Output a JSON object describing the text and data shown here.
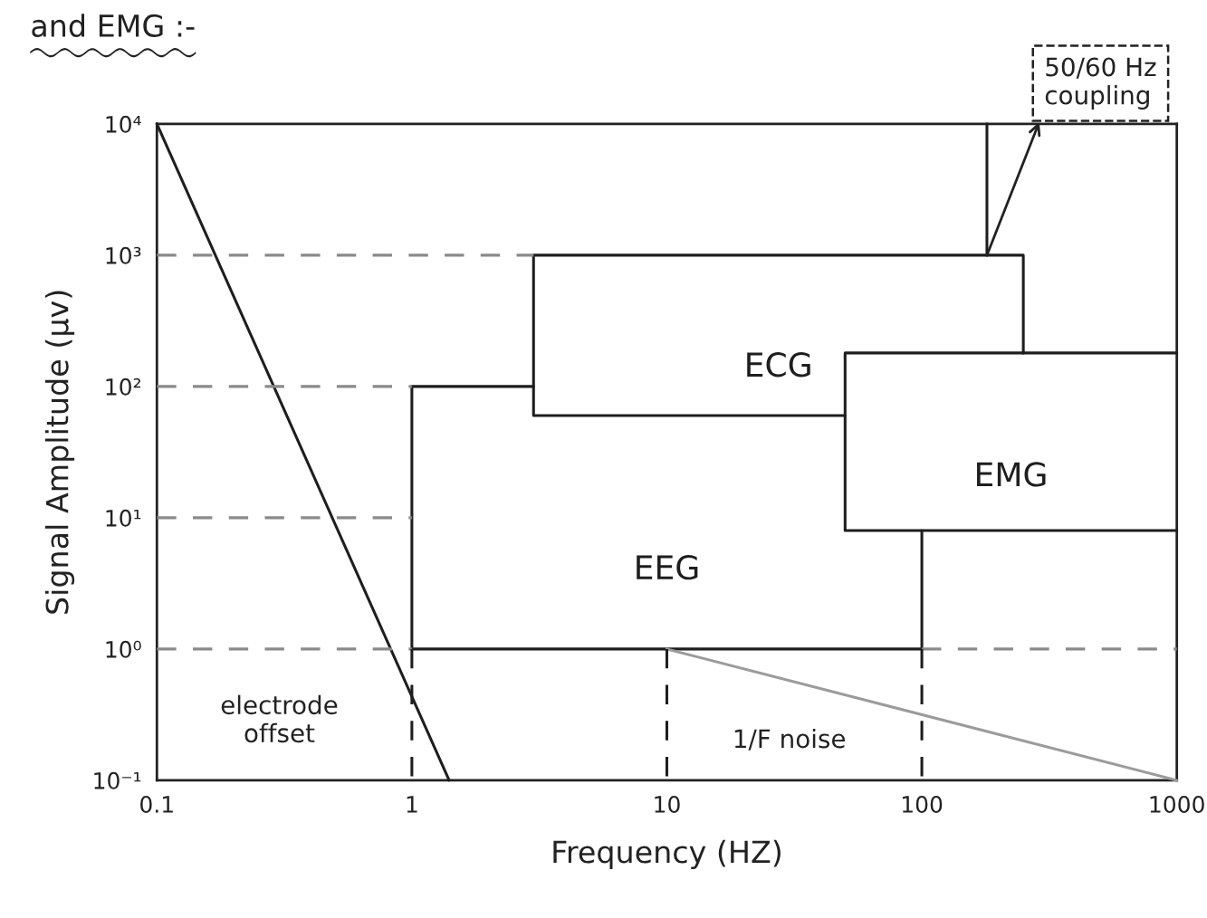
{
  "chart_data": {
    "type": "line",
    "title": "and EMG :-",
    "xlabel": "Frequency (HZ)",
    "ylabel": "Signal Amplitude (μv)",
    "log": "xy",
    "xlim": [
      0.1,
      1000
    ],
    "ylim": [
      0.1,
      10000
    ],
    "xticks": [
      0.1,
      1,
      10,
      100,
      1000
    ],
    "yticks": [
      {
        "value": 0.1,
        "label": "10⁻¹"
      },
      {
        "value": 1,
        "label": "10⁰"
      },
      {
        "value": 10,
        "label": "10¹"
      },
      {
        "value": 100,
        "label": "10²"
      },
      {
        "value": 1000,
        "label": "10³"
      },
      {
        "value": 10000,
        "label": "10⁴"
      }
    ],
    "series": [
      {
        "x": [
          0.1,
          1.4,
          null,
          180,
          180
        ],
        "values": [
          10000,
          0.1,
          null,
          1000,
          10000
        ],
        "color": "#1e1e1e"
      },
      {
        "name": "EEG",
        "x": [
          3,
          1,
          1,
          100,
          100
        ],
        "values": [
          100,
          100,
          1,
          1,
          8
        ],
        "color": "#1e1e1e"
      },
      {
        "name": "ECG",
        "x": [
          50,
          3,
          3,
          250,
          250
        ],
        "values": [
          60,
          60,
          1000,
          1000,
          180
        ],
        "color": "#1e1e1e"
      },
      {
        "name": "EMG",
        "x": [
          1000,
          50,
          50,
          1000
        ],
        "values": [
          180,
          180,
          8,
          8
        ],
        "color": "#1e1e1e"
      },
      {
        "x": [
          10,
          1000
        ],
        "values": [
          1,
          0.1
        ],
        "color": "#9b9b9b"
      },
      {
        "x": [
          0.1,
          3
        ],
        "values": [
          1000,
          1000
        ],
        "color": "#8a8a8a",
        "line_style": "dashed"
      },
      {
        "x": [
          0.1,
          1
        ],
        "values": [
          100,
          100
        ],
        "color": "#8a8a8a",
        "line_style": "dashed"
      },
      {
        "x": [
          0.1,
          1
        ],
        "values": [
          10,
          10
        ],
        "color": "#8a8a8a",
        "line_style": "dashed"
      },
      {
        "x": [
          0.1,
          1
        ],
        "values": [
          1,
          1
        ],
        "color": "#8a8a8a",
        "line_style": "dashed"
      },
      {
        "x": [
          100,
          1000
        ],
        "values": [
          1,
          1
        ],
        "color": "#8a8a8a",
        "line_style": "dashed"
      },
      {
        "x": [
          1,
          1,
          null,
          10,
          10,
          null,
          100,
          100
        ],
        "values": [
          1,
          0.1,
          null,
          1,
          0.1,
          null,
          1,
          0.1
        ],
        "color": "#1e1e1e",
        "line_style": "dashed"
      }
    ],
    "annotations": [
      {
        "text": "50/60 Hz\ncoupling",
        "x": 180,
        "y": 1000
      },
      "electrode\noffset",
      "1/F noise"
    ]
  }
}
